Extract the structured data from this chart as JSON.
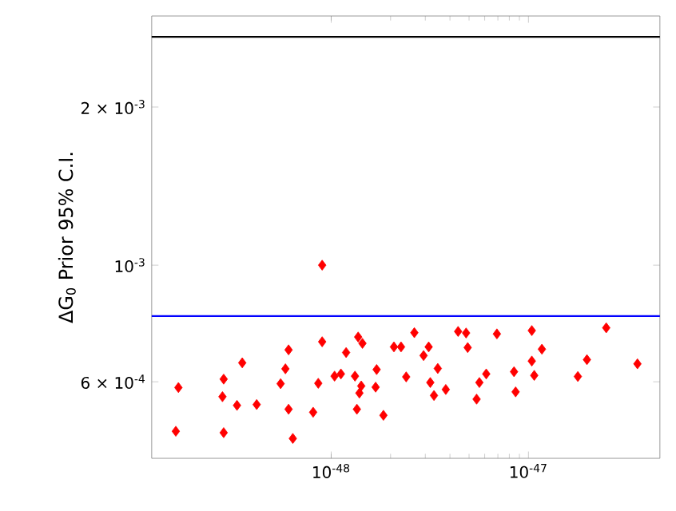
{
  "chart_data": {
    "type": "scatter",
    "ylabel": "ΔG$_{0}$ Prior 95% C.I.",
    "log": "xy",
    "grid": false,
    "marker": "diamond",
    "xlim": [
      1.23e-49,
      4.64e-47
    ],
    "ylim": [
      0.000429,
      0.00298
    ],
    "xticks": [
      {
        "value": 1e-48,
        "label": "10$^{-48}$"
      },
      {
        "value": 1e-47,
        "label": "10$^{-47}$"
      }
    ],
    "yticks": [
      {
        "value": 0.0006,
        "label": "6 × 10$^{-4}$"
      },
      {
        "value": 0.001,
        "label": "10$^{-3}$"
      },
      {
        "value": 0.002,
        "label": "2 × 10$^{-3}$"
      }
    ],
    "ref_lines": [
      {
        "axis": "y",
        "value": 0.00272,
        "color": "#000000"
      },
      {
        "axis": "y",
        "value": 0.0008,
        "color": "#0000ff"
      }
    ],
    "series": [
      {
        "color": "#ff0000",
        "x": [
          1.63e-49,
          1.68e-49,
          2.85e-49,
          2.85e-49,
          2.81e-49,
          3.33e-49,
          3.54e-49,
          4.19e-49,
          6.08e-49,
          5.86e-49,
          5.54e-49,
          6.08e-49,
          6.39e-49,
          9e-49,
          9e-49,
          8.1e-49,
          8.6e-49,
          1.04e-48,
          1.12e-48,
          1.19e-48,
          1.37e-48,
          1.44e-48,
          1.32e-48,
          1.42e-48,
          1.39e-48,
          1.35e-48,
          1.7e-48,
          1.68e-48,
          1.84e-48,
          2.08e-48,
          2.26e-48,
          2.4e-48,
          2.64e-48,
          3.12e-48,
          2.94e-48,
          3.47e-48,
          3.18e-48,
          3.32e-48,
          3.81e-48,
          4.4e-48,
          4.83e-48,
          4.92e-48,
          5.46e-48,
          5.64e-48,
          6.11e-48,
          6.92e-48,
          8.45e-48,
          8.61e-48,
          1.04e-47,
          1.04e-47,
          1.17e-47,
          1.07e-47,
          1.78e-47,
          1.98e-47,
          2.48e-47,
          3.57e-47
        ],
        "values": [
          0.000483,
          0.000585,
          0.00048,
          0.000607,
          0.000562,
          0.000541,
          0.000652,
          0.000543,
          0.00069,
          0.000635,
          0.000595,
          0.000532,
          0.000468,
          0.001,
          0.000715,
          0.000525,
          0.000596,
          0.000615,
          0.000621,
          0.000682,
          0.00073,
          0.00071,
          0.000615,
          0.000589,
          0.000571,
          0.000532,
          0.000633,
          0.000586,
          0.000518,
          0.000699,
          0.000699,
          0.000613,
          0.000744,
          0.000699,
          0.000673,
          0.000636,
          0.000598,
          0.000565,
          0.00058,
          0.000748,
          0.000743,
          0.000697,
          0.000556,
          0.000598,
          0.000621,
          0.00074,
          0.000627,
          0.000574,
          0.000751,
          0.000657,
          0.000692,
          0.000617,
          0.000614,
          0.000661,
          0.00076,
          0.000649
        ]
      }
    ]
  }
}
